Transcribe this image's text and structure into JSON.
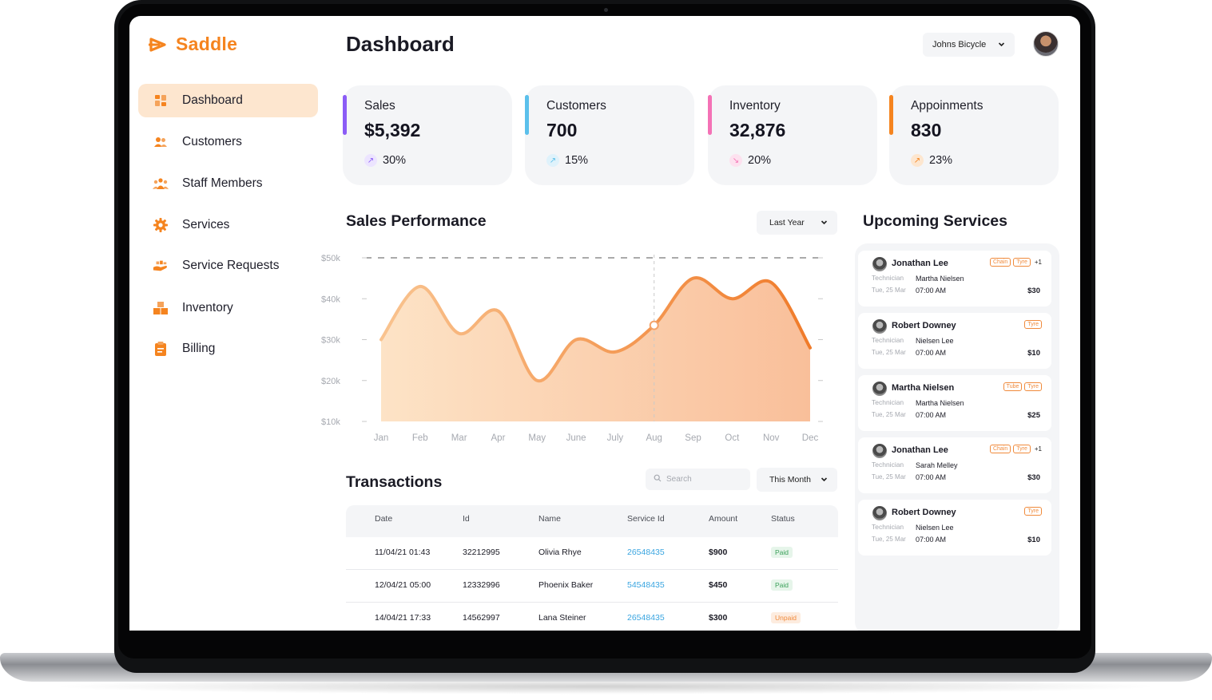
{
  "app": {
    "name": "Saddle",
    "accent": "#f5841f",
    "logo_icon": "saddle-logo-icon"
  },
  "sidebar": {
    "items": [
      {
        "label": "Dashboard",
        "icon": "dashboard-grid-icon",
        "active": true
      },
      {
        "label": "Customers",
        "icon": "customers-icon"
      },
      {
        "label": "Staff Members",
        "icon": "staff-members-icon"
      },
      {
        "label": "Services",
        "icon": "services-gear-icon"
      },
      {
        "label": "Service Requests",
        "icon": "service-requests-hand-icon"
      },
      {
        "label": "Inventory",
        "icon": "inventory-boxes-icon"
      },
      {
        "label": "Billing",
        "icon": "billing-clipboard-icon"
      }
    ]
  },
  "header": {
    "title": "Dashboard",
    "shop_select": "Johns Bicycle"
  },
  "stats": [
    {
      "label": "Sales",
      "value": "$5,392",
      "change": "30%",
      "color": "#8b5cf6",
      "trend": "up"
    },
    {
      "label": "Customers",
      "value": "700",
      "change": "15%",
      "color": "#5bc0eb",
      "trend": "up"
    },
    {
      "label": "Inventory",
      "value": "32,876",
      "change": "20%",
      "color": "#f472b6",
      "trend": "down"
    },
    {
      "label": "Appoinments",
      "value": "830",
      "change": "23%",
      "color": "#f5841f",
      "trend": "up"
    }
  ],
  "sales_performance": {
    "title": "Sales Performance",
    "range": "Last Year"
  },
  "chart_data": {
    "type": "area",
    "title": "Sales Performance",
    "categories": [
      "Jan",
      "Feb",
      "Mar",
      "Apr",
      "May",
      "June",
      "July",
      "Aug",
      "Sep",
      "Oct",
      "Nov",
      "Dec"
    ],
    "values": [
      30000,
      43000,
      31500,
      37000,
      20000,
      30000,
      27000,
      33500,
      45000,
      40000,
      44000,
      28000
    ],
    "ytick_labels": [
      "$50k",
      "$40k",
      "$30k",
      "$20k",
      "$10k"
    ],
    "yticks": [
      50000,
      40000,
      30000,
      20000,
      10000
    ],
    "ylim": [
      10000,
      50000
    ],
    "highlight_index": 7,
    "grid": false
  },
  "transactions": {
    "title": "Transactions",
    "search_placeholder": "Search",
    "range": "This Month",
    "columns": [
      "Date",
      "Id",
      "Name",
      "Service Id",
      "Amount",
      "Status"
    ],
    "rows": [
      {
        "date": "11/04/21  01:43",
        "id": "32212995",
        "name": "Olivia Rhye",
        "service_id": "26548435",
        "amount": "$900",
        "status": "Paid"
      },
      {
        "date": "12/04/21  05:00",
        "id": "12332996",
        "name": "Phoenix Baker",
        "service_id": "54548435",
        "amount": "$450",
        "status": "Paid"
      },
      {
        "date": "14/04/21  17:33",
        "id": "14562997",
        "name": "Lana Steiner",
        "service_id": "26548435",
        "amount": "$300",
        "status": "Unpaid"
      }
    ]
  },
  "upcoming": {
    "title": "Upcoming Services",
    "tech_label": "Technician",
    "items": [
      {
        "name": "Jonathan Lee",
        "tags": [
          "Chain",
          "Tyre"
        ],
        "more": "+1",
        "technician": "Martha Nielsen",
        "date": "Tue, 25 Mar",
        "time": "07:00 AM",
        "price": "$30"
      },
      {
        "name": "Robert Downey",
        "tags": [
          "Tyre"
        ],
        "more": "",
        "technician": "Nielsen Lee",
        "date": "Tue, 25 Mar",
        "time": "07:00 AM",
        "price": "$10"
      },
      {
        "name": "Martha Nielsen",
        "tags": [
          "Tube",
          "Tyre"
        ],
        "more": "",
        "technician": "Martha Nielsen",
        "date": "Tue, 25 Mar",
        "time": "07:00 AM",
        "price": "$25"
      },
      {
        "name": "Jonathan Lee",
        "tags": [
          "Chain",
          "Tyre"
        ],
        "more": "+1",
        "technician": "Sarah Melley",
        "date": "Tue, 25 Mar",
        "time": "07:00 AM",
        "price": "$30"
      },
      {
        "name": "Robert Downey",
        "tags": [
          "Tyre"
        ],
        "more": "",
        "technician": "Nielsen Lee",
        "date": "Tue, 25 Mar",
        "time": "07:00 AM",
        "price": "$10"
      }
    ]
  }
}
